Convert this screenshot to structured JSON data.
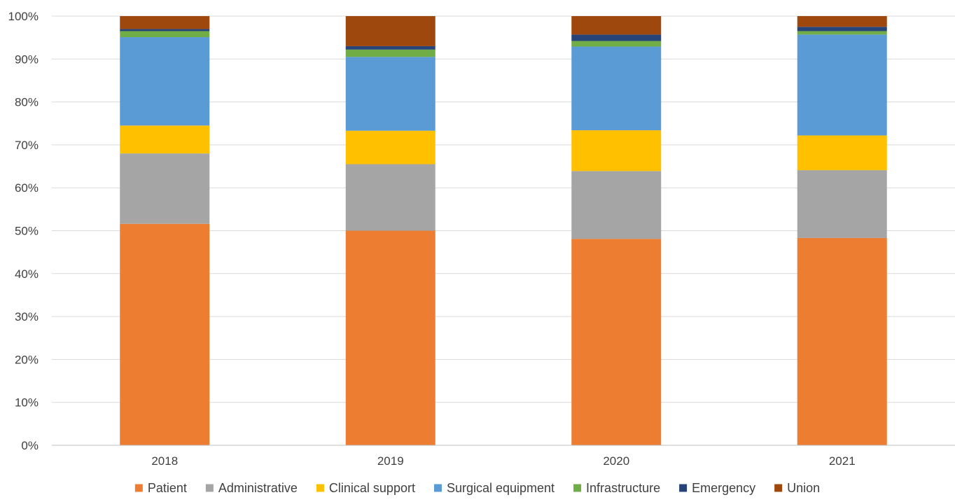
{
  "chart_data": {
    "type": "bar",
    "stacked": true,
    "percent": true,
    "categories": [
      "2018",
      "2019",
      "2020",
      "2021"
    ],
    "series": [
      {
        "name": "Patient",
        "color": "#ED7D31",
        "values": [
          51.6,
          50.0,
          48.1,
          48.3
        ]
      },
      {
        "name": "Administrative",
        "color": "#A5A5A5",
        "values": [
          16.4,
          15.5,
          15.8,
          15.8
        ]
      },
      {
        "name": "Clinical support",
        "color": "#FFC000",
        "values": [
          6.5,
          7.8,
          9.5,
          8.1
        ]
      },
      {
        "name": "Surgical equipment",
        "color": "#5B9BD5",
        "values": [
          20.6,
          17.2,
          19.5,
          23.5
        ]
      },
      {
        "name": "Infrastructure",
        "color": "#70AD47",
        "values": [
          1.4,
          1.7,
          1.3,
          0.8
        ]
      },
      {
        "name": "Emergency",
        "color": "#264478",
        "values": [
          0.5,
          0.8,
          1.5,
          1.0
        ]
      },
      {
        "name": "Union",
        "color": "#9E480E",
        "values": [
          3.0,
          7.0,
          4.3,
          2.5
        ]
      }
    ],
    "ylim": [
      0,
      100
    ],
    "yticks": [
      "0%",
      "10%",
      "20%",
      "30%",
      "40%",
      "50%",
      "60%",
      "70%",
      "80%",
      "90%",
      "100%"
    ],
    "grid": true,
    "legend_position": "bottom"
  }
}
